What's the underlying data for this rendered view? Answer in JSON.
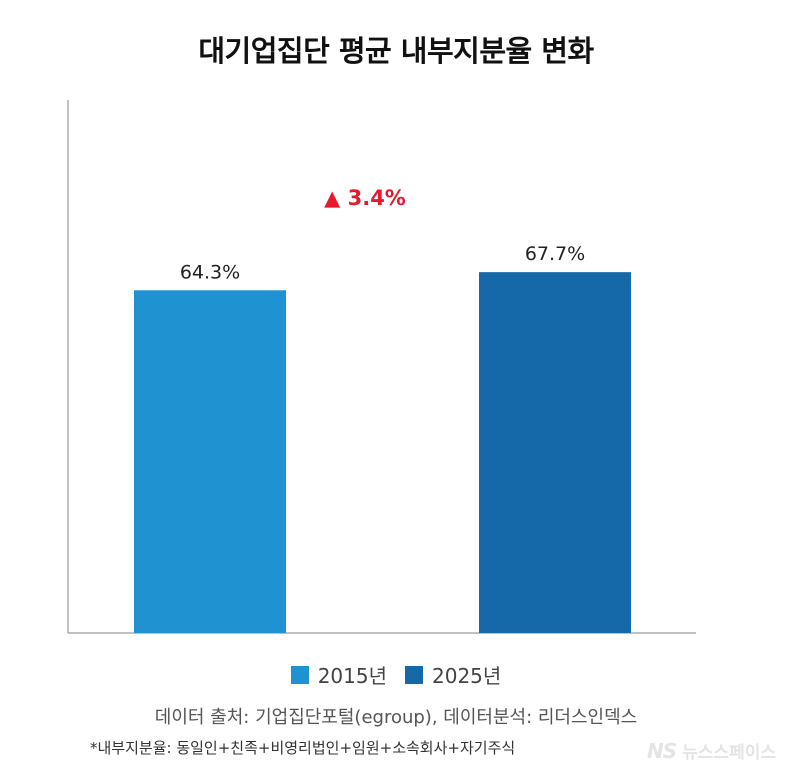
{
  "title": "대기업집단 평균 내부지분율 변화",
  "source": "데이터 출처: 기업집단포털(egroup), 데이터분석: 리더스인덱스",
  "footnote": "*내부지분율: 동일인+친족+비영리법인+임원+소속회사+자기주식",
  "watermark": {
    "logo": "NS",
    "name": "뉴스스페이스"
  },
  "change_annotation": {
    "marker": "▲",
    "text": "3.4%",
    "color": "#e8192c"
  },
  "chart_data": {
    "type": "bar",
    "title": "대기업집단 평균 내부지분율 변화",
    "categories": [
      "2015년",
      "2025년"
    ],
    "values": [
      64.3,
      67.7
    ],
    "data_labels": [
      "64.3%",
      "67.7%"
    ],
    "colors": [
      "#1f93d1",
      "#1669a8"
    ],
    "legend": [
      "2015년",
      "2025년"
    ],
    "legend_position": "bottom",
    "xlabel": "",
    "ylabel": "",
    "ylim": [
      0,
      100
    ],
    "grid": false
  }
}
